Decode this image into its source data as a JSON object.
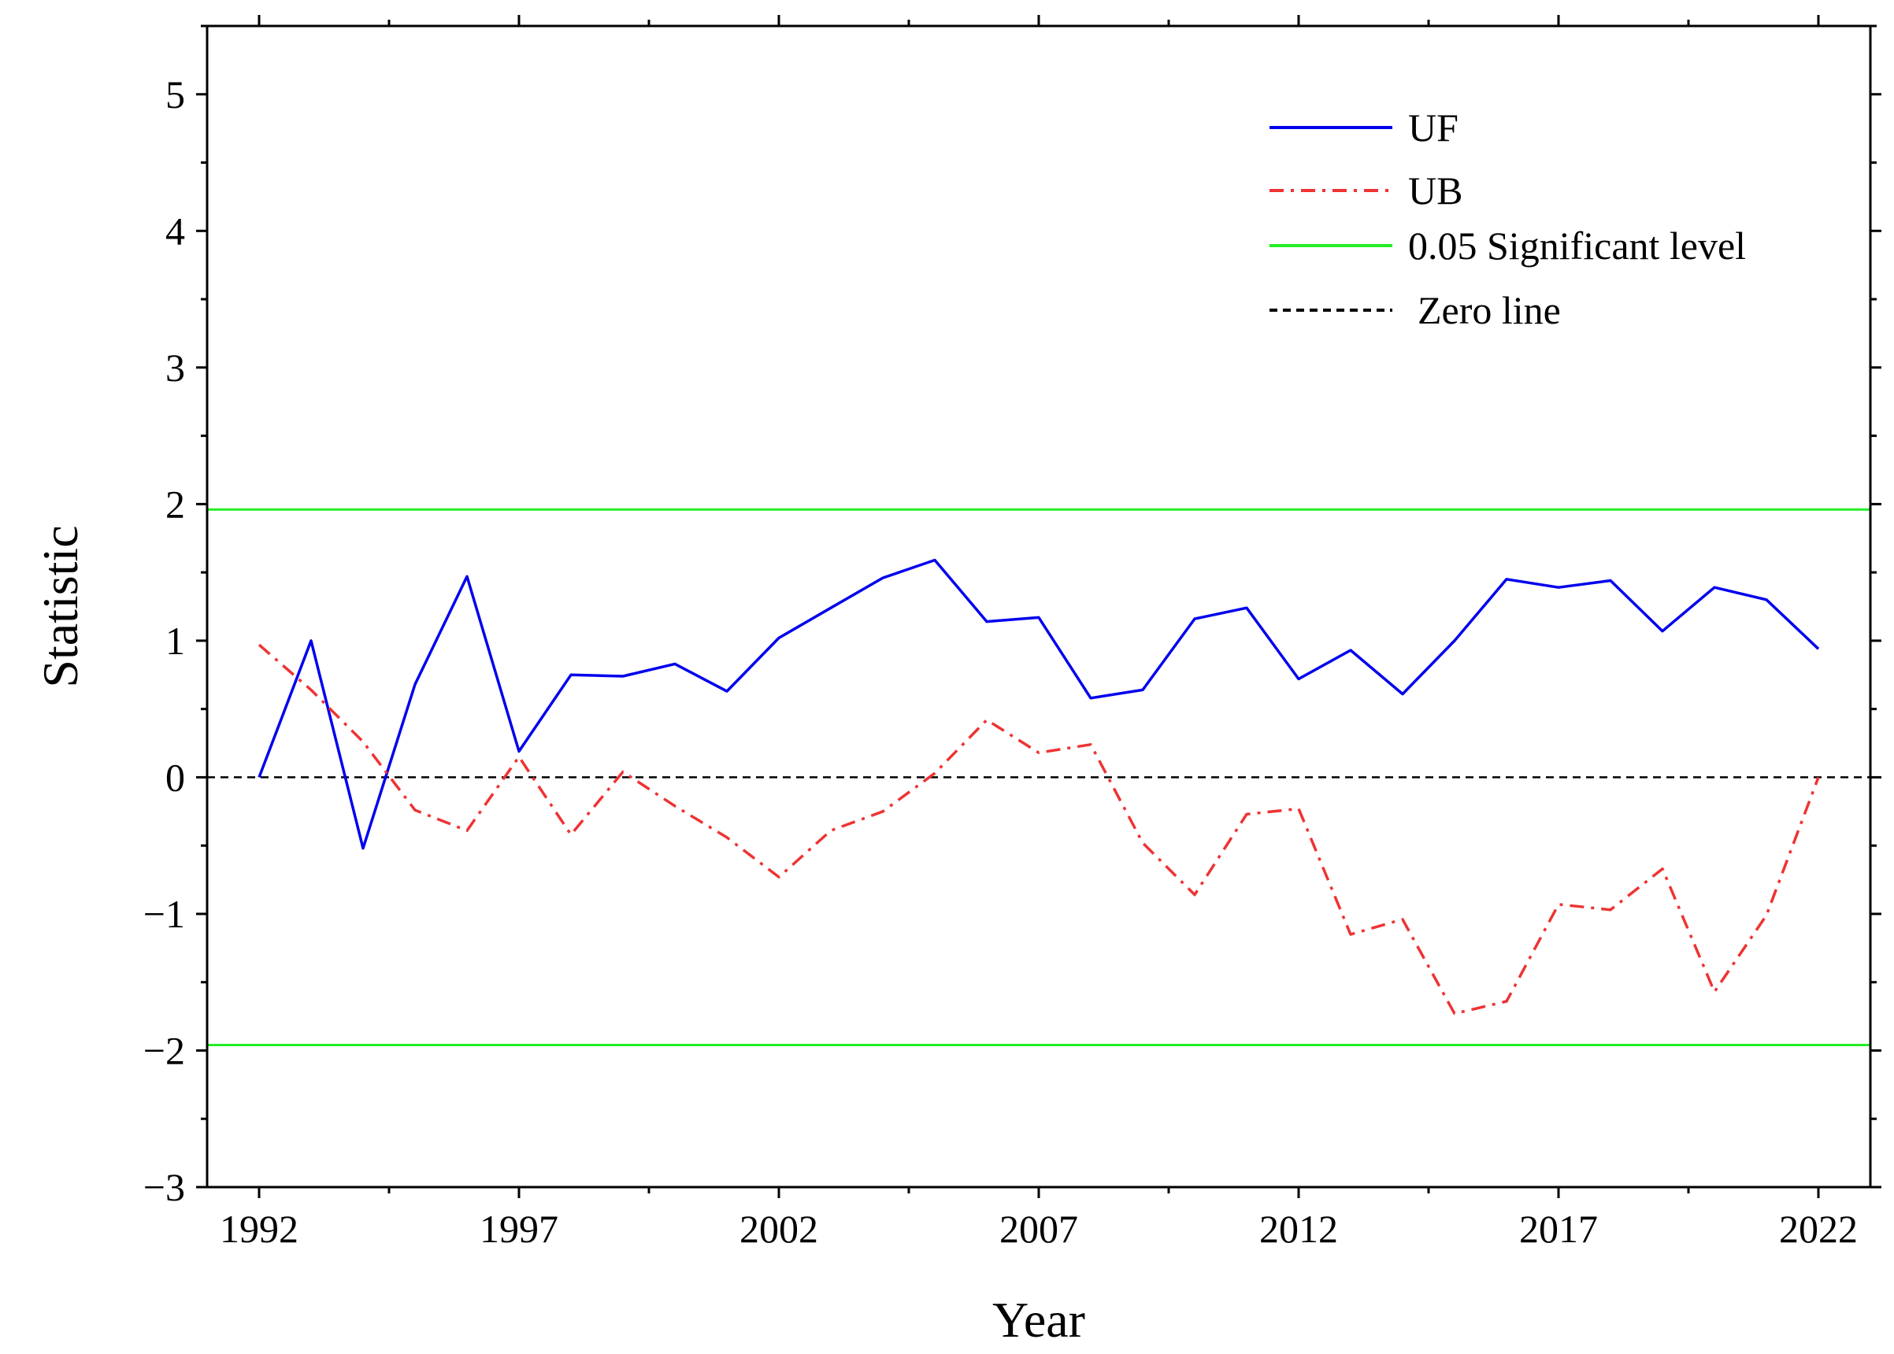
{
  "chart_data": {
    "type": "line",
    "title": "",
    "xlabel": "Year",
    "ylabel": "Statistic",
    "xlim": [
      1991,
      2023
    ],
    "ylim": [
      -3,
      5.5
    ],
    "x_ticks": [
      1992,
      1997,
      2002,
      2007,
      2012,
      2017,
      2022
    ],
    "y_ticks": [
      -3,
      -2,
      -1,
      0,
      1,
      2,
      3,
      4,
      5
    ],
    "y_tick_labels": [
      "−3",
      "−2",
      "−1",
      "0",
      "1",
      "2",
      "3",
      "4",
      "5"
    ],
    "grid": false,
    "legend_position": "top-right",
    "x": [
      1992,
      1993,
      1994,
      1995,
      1996,
      1997,
      1998,
      1999,
      2000,
      2001,
      2002,
      2003,
      2004,
      2005,
      2006,
      2007,
      2008,
      2009,
      2010,
      2011,
      2012,
      2013,
      2014,
      2015,
      2016,
      2017,
      2018,
      2019,
      2020,
      2021,
      2022
    ],
    "series": [
      {
        "name": "UF",
        "color": "#0000ee",
        "style": "solid",
        "values": [
          0,
          1.0,
          -0.52,
          0.68,
          1.47,
          0.19,
          0.75,
          0.74,
          0.83,
          0.63,
          1.02,
          1.24,
          1.46,
          1.59,
          1.14,
          1.17,
          0.58,
          0.64,
          1.16,
          1.24,
          0.72,
          0.93,
          0.61,
          1.0,
          1.45,
          1.39,
          1.44,
          1.07,
          1.39,
          1.3,
          0.94
        ]
      },
      {
        "name": "UB",
        "color": "#ee3333",
        "style": "dashdot",
        "values": [
          0.97,
          0.64,
          0.26,
          -0.24,
          -0.39,
          0.15,
          -0.42,
          0.04,
          -0.21,
          -0.44,
          -0.73,
          -0.39,
          -0.25,
          0.03,
          0.42,
          0.18,
          0.24,
          -0.48,
          -0.86,
          -0.27,
          -0.23,
          -1.15,
          -1.04,
          -1.73,
          -1.64,
          -0.93,
          -0.97,
          -0.67,
          -1.57,
          -1.01,
          0.0
        ]
      }
    ],
    "reference_lines": [
      {
        "name": "0.05 Significant level",
        "color": "#22ee22",
        "style": "solid",
        "values": [
          1.96,
          -1.96
        ]
      },
      {
        "name": "Zero line",
        "color": "#000000",
        "style": "dashed",
        "values": [
          0
        ]
      }
    ],
    "legend": [
      "UF",
      "UB",
      "0.05 Significant level",
      "Zero line"
    ]
  }
}
